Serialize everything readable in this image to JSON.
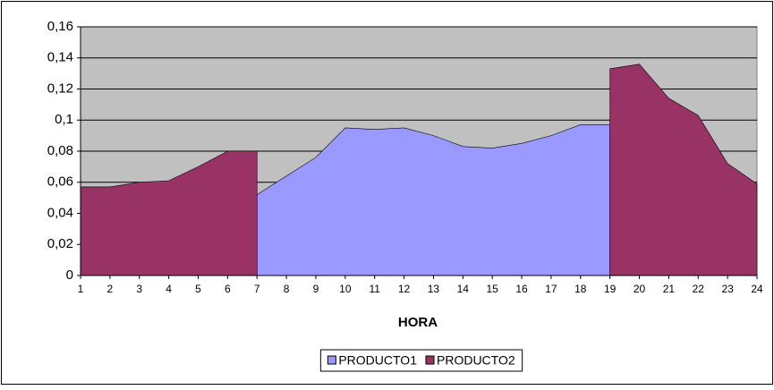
{
  "chart_data": {
    "type": "area",
    "x_label": "HORA",
    "categories": [
      "1",
      "2",
      "3",
      "4",
      "5",
      "6",
      "7",
      "8",
      "9",
      "10",
      "11",
      "12",
      "13",
      "14",
      "15",
      "16",
      "17",
      "18",
      "19",
      "20",
      "21",
      "22",
      "23",
      "24"
    ],
    "series": [
      {
        "name": "PRODUCTO1",
        "color": "#9999ff",
        "values": [
          null,
          null,
          null,
          null,
          null,
          null,
          0.052,
          0.064,
          0.076,
          0.095,
          0.094,
          0.095,
          0.09,
          0.083,
          0.082,
          0.085,
          0.09,
          0.097,
          0.097,
          null,
          null,
          null,
          null,
          null
        ]
      },
      {
        "name": "PRODUCTO2",
        "color": "#993366",
        "values": [
          0.057,
          0.057,
          0.06,
          0.061,
          0.07,
          0.08,
          0.08,
          null,
          null,
          null,
          null,
          null,
          null,
          null,
          null,
          null,
          null,
          null,
          0.133,
          0.136,
          0.114,
          0.103,
          0.072,
          0.059
        ]
      }
    ],
    "ylim": [
      0,
      0.16
    ],
    "yticks": [
      0,
      {
        "value": 0.02,
        "label": "0,02"
      },
      {
        "value": 0.04,
        "label": "0,04"
      },
      {
        "value": 0.06,
        "label": "0,06"
      },
      {
        "value": 0.08,
        "label": "0,08"
      },
      {
        "value": 0.1,
        "label": "0,1"
      },
      {
        "value": 0.12,
        "label": "0,12"
      },
      {
        "value": 0.14,
        "label": "0,14"
      },
      {
        "value": 0.16,
        "label": "0,16"
      }
    ],
    "grid": true,
    "legend": "bottom"
  }
}
